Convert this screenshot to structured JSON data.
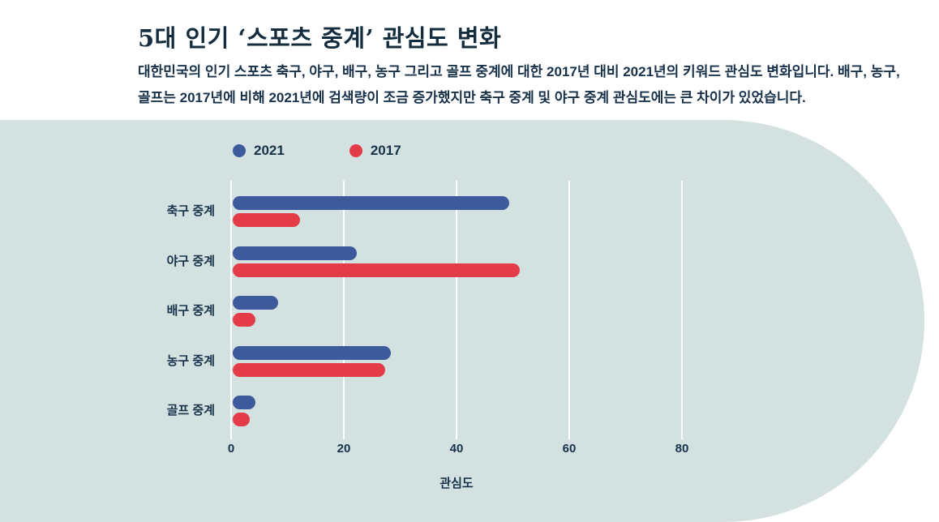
{
  "header": {
    "title": "5대 인기 ‘스포츠 중계’ 관심도 변화",
    "description": "대한민국의 인기 스포츠 축구, 야구, 배구, 농구 그리고 골프 중계에 대한 2017년 대비 2021년의 키워드 관심도 변화입니다. 배구, 농구, 골프는 2017년에 비해 2021년에 검색량이 조금 증가했지만 축구 중계 및 야구 중계 관심도에는 큰 차이가 있었습니다."
  },
  "chart_data": {
    "type": "bar",
    "orientation": "horizontal",
    "title": "5대 인기 ‘스포츠 중계’ 관심도 변화",
    "categories": [
      "축구 중계",
      "야구 중계",
      "배구 중계",
      "농구 중계",
      "골프 중계"
    ],
    "series": [
      {
        "name": "2021",
        "color": "#3d5b9c",
        "values": [
          49,
          22,
          8,
          28,
          4
        ]
      },
      {
        "name": "2017",
        "color": "#e33c48",
        "values": [
          12,
          51,
          4,
          27,
          3
        ]
      }
    ],
    "xlabel": "관심도",
    "ylabel": "",
    "xlim": [
      0,
      88
    ],
    "xticks": [
      0,
      20,
      40,
      60,
      80
    ],
    "grid": true,
    "legend_position": "top-left"
  },
  "colors": {
    "panel_background": "#d3e1e0",
    "text": "#17324a",
    "series_2021": "#3d5b9c",
    "series_2017": "#e33c48",
    "gridline": "#ffffff"
  }
}
